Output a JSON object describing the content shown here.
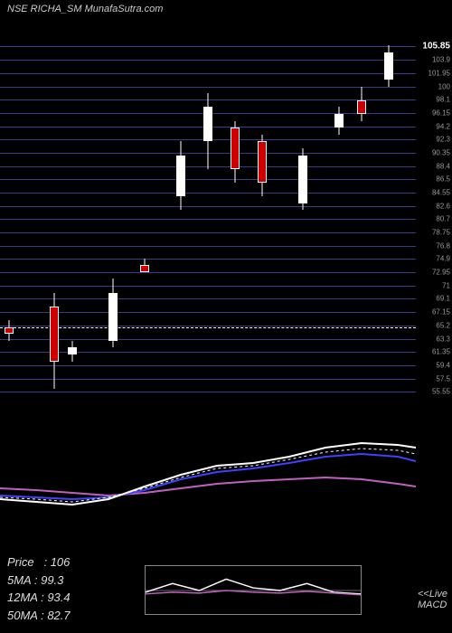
{
  "header": {
    "ticker": "NSE RICHA_SM",
    "source": "MunafaSutra.com"
  },
  "price_chart": {
    "type": "candlestick",
    "ylim": [
      56,
      106
    ],
    "current_price": 105.85,
    "gridline_color": "#3a3a8a",
    "background": "#000000",
    "y_labels": [
      "105.85",
      "103.9",
      "101.95",
      "100",
      "98.1",
      "96.15",
      "94.2",
      "92.3",
      "90.35",
      "88.4",
      "86.5",
      "84.55",
      "82.6",
      "80.7",
      "78.75",
      "76.8",
      "74.9",
      "72.95",
      "71",
      "69.1",
      "67.15",
      "65.2",
      "63.3",
      "61.35",
      "59.4",
      "57.5",
      "55.55"
    ],
    "dashed_ref": 65,
    "candles": [
      {
        "x": 5,
        "high": 66,
        "low": 63,
        "open": 65,
        "close": 64,
        "up": false
      },
      {
        "x": 55,
        "high": 70,
        "low": 56,
        "open": 68,
        "close": 60,
        "up": false
      },
      {
        "x": 75,
        "high": 63,
        "low": 60,
        "open": 62,
        "close": 61,
        "up": true
      },
      {
        "x": 120,
        "high": 72,
        "low": 62,
        "open": 63,
        "close": 70,
        "up": true
      },
      {
        "x": 155,
        "high": 75,
        "low": 73,
        "open": 74,
        "close": 73,
        "up": false
      },
      {
        "x": 195,
        "high": 92,
        "low": 82,
        "open": 84,
        "close": 90,
        "up": true
      },
      {
        "x": 225,
        "high": 99,
        "low": 88,
        "open": 92,
        "close": 97,
        "up": true
      },
      {
        "x": 255,
        "high": 95,
        "low": 86,
        "open": 94,
        "close": 88,
        "up": false
      },
      {
        "x": 285,
        "high": 93,
        "low": 84,
        "open": 92,
        "close": 86,
        "up": false
      },
      {
        "x": 330,
        "high": 91,
        "low": 82,
        "open": 83,
        "close": 90,
        "up": true
      },
      {
        "x": 370,
        "high": 97,
        "low": 93,
        "open": 94,
        "close": 96,
        "up": true
      },
      {
        "x": 395,
        "high": 100,
        "low": 95,
        "open": 96,
        "close": 98,
        "up": false
      },
      {
        "x": 425,
        "high": 106,
        "low": 100,
        "open": 101,
        "close": 105,
        "up": true
      }
    ]
  },
  "macd_panel": {
    "type": "line",
    "lines": [
      {
        "name": "signal",
        "color": "#c060c0",
        "width": 2,
        "points": [
          [
            0,
            70
          ],
          [
            40,
            72
          ],
          [
            80,
            75
          ],
          [
            120,
            78
          ],
          [
            160,
            75
          ],
          [
            200,
            70
          ],
          [
            240,
            65
          ],
          [
            280,
            62
          ],
          [
            320,
            60
          ],
          [
            360,
            58
          ],
          [
            400,
            60
          ],
          [
            440,
            65
          ],
          [
            460,
            68
          ]
        ]
      },
      {
        "name": "macd-blue",
        "color": "#4040ff",
        "width": 2,
        "points": [
          [
            0,
            78
          ],
          [
            40,
            80
          ],
          [
            80,
            82
          ],
          [
            120,
            80
          ],
          [
            160,
            72
          ],
          [
            200,
            60
          ],
          [
            240,
            52
          ],
          [
            280,
            48
          ],
          [
            320,
            42
          ],
          [
            360,
            35
          ],
          [
            400,
            32
          ],
          [
            440,
            35
          ],
          [
            460,
            40
          ]
        ]
      },
      {
        "name": "macd-white",
        "color": "#ffffff",
        "width": 2,
        "points": [
          [
            0,
            82
          ],
          [
            40,
            85
          ],
          [
            80,
            88
          ],
          [
            120,
            82
          ],
          [
            160,
            68
          ],
          [
            200,
            55
          ],
          [
            240,
            45
          ],
          [
            280,
            42
          ],
          [
            320,
            35
          ],
          [
            360,
            25
          ],
          [
            400,
            20
          ],
          [
            440,
            22
          ],
          [
            460,
            25
          ]
        ]
      },
      {
        "name": "macd-dashed",
        "color": "#ffffff",
        "width": 1,
        "dashed": true,
        "points": [
          [
            0,
            80
          ],
          [
            40,
            82
          ],
          [
            80,
            85
          ],
          [
            120,
            80
          ],
          [
            160,
            70
          ],
          [
            200,
            58
          ],
          [
            240,
            48
          ],
          [
            280,
            45
          ],
          [
            320,
            38
          ],
          [
            360,
            30
          ],
          [
            400,
            26
          ],
          [
            440,
            28
          ],
          [
            460,
            32
          ]
        ]
      }
    ]
  },
  "live_box": {
    "label_top": "<<Live",
    "label_bottom": "MACD",
    "lines": [
      {
        "color": "#ffffff",
        "points": [
          [
            0,
            30
          ],
          [
            30,
            20
          ],
          [
            60,
            28
          ],
          [
            90,
            15
          ],
          [
            120,
            25
          ],
          [
            150,
            28
          ],
          [
            180,
            20
          ],
          [
            210,
            30
          ],
          [
            240,
            32
          ]
        ]
      },
      {
        "color": "#c060c0",
        "points": [
          [
            0,
            32
          ],
          [
            30,
            30
          ],
          [
            60,
            31
          ],
          [
            90,
            28
          ],
          [
            120,
            30
          ],
          [
            150,
            31
          ],
          [
            180,
            29
          ],
          [
            210,
            31
          ],
          [
            240,
            33
          ]
        ]
      }
    ],
    "zero_line": 28
  },
  "info": {
    "price_label": "Price",
    "price_value": "106",
    "ma5_label": "5MA",
    "ma5_value": "99.3",
    "ma12_label": "12MA",
    "ma12_value": "93.4",
    "ma50_label": "50MA",
    "ma50_value": "82.7"
  }
}
